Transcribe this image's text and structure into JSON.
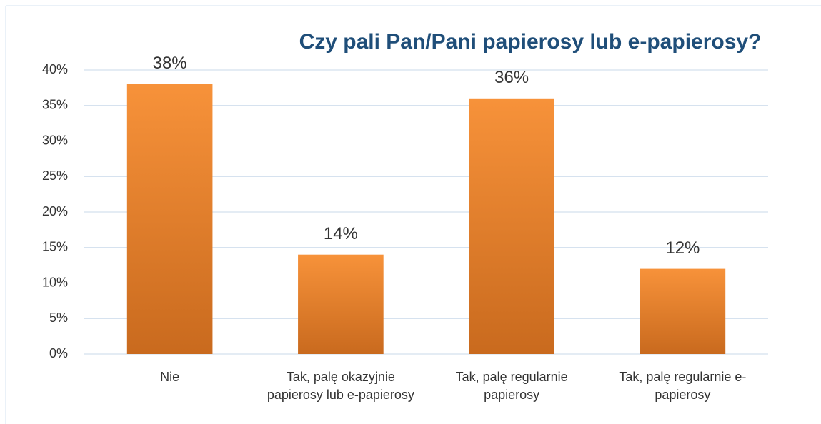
{
  "chart_data": {
    "type": "bar",
    "title": "Czy pali Pan/Pani papierosy lub e-papierosy?",
    "categories": [
      "Nie",
      "Tak, palę okazyjnie papierosy lub e-papierosy",
      "Tak, palę regularnie papierosy",
      "Tak, palę regularnie e-papierosy"
    ],
    "values": [
      38,
      14,
      36,
      12
    ],
    "value_labels": [
      "38%",
      "14%",
      "36%",
      "12%"
    ],
    "color": "#f7923a",
    "ylim": [
      0,
      40
    ],
    "yticks": [
      {
        "value": 0,
        "label": "0%"
      },
      {
        "value": 5,
        "label": "5%"
      },
      {
        "value": 10,
        "label": "10%"
      },
      {
        "value": 15,
        "label": "15%"
      },
      {
        "value": 20,
        "label": "20%"
      },
      {
        "value": 25,
        "label": "25%"
      },
      {
        "value": 30,
        "label": "30%"
      },
      {
        "value": 35,
        "label": "35%"
      },
      {
        "value": 40,
        "label": "40%"
      }
    ],
    "grid": true
  }
}
